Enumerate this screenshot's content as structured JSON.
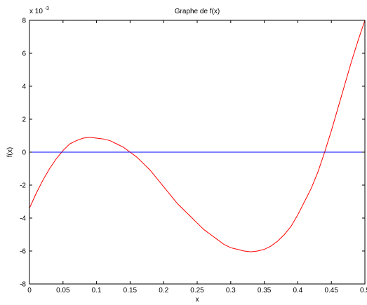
{
  "chart_data": {
    "type": "line",
    "title": "Graphe de f(x)",
    "xlabel": "x",
    "ylabel": "f(x)",
    "xlim": [
      0,
      0.5
    ],
    "ylim": [
      -0.008,
      0.008
    ],
    "y_exponent_label": "x 10",
    "y_exponent_power": "-3",
    "xticks": [
      0,
      0.05,
      0.1,
      0.15,
      0.2,
      0.25,
      0.3,
      0.35,
      0.4,
      0.45,
      0.5
    ],
    "xtick_labels": [
      "0",
      "0.05",
      "0.1",
      "0.15",
      "0.2",
      "0.25",
      "0.3",
      "0.35",
      "0.4",
      "0.45",
      "0.5"
    ],
    "yticks": [
      -0.008,
      -0.006,
      -0.004,
      -0.002,
      0,
      0.002,
      0.004,
      0.006,
      0.008
    ],
    "ytick_labels": [
      "-8",
      "-6",
      "-4",
      "-2",
      "0",
      "2",
      "4",
      "6",
      "8"
    ],
    "grid": false,
    "series": [
      {
        "color": "#ff0000",
        "x": [
          0,
          0.01,
          0.02,
          0.03,
          0.04,
          0.05,
          0.06,
          0.07,
          0.08,
          0.09,
          0.1,
          0.11,
          0.12,
          0.13,
          0.14,
          0.15,
          0.16,
          0.17,
          0.18,
          0.19,
          0.2,
          0.21,
          0.22,
          0.23,
          0.24,
          0.25,
          0.26,
          0.27,
          0.28,
          0.29,
          0.3,
          0.31,
          0.32,
          0.33,
          0.34,
          0.35,
          0.36,
          0.37,
          0.38,
          0.39,
          0.4,
          0.41,
          0.42,
          0.43,
          0.44,
          0.45,
          0.46,
          0.47,
          0.48,
          0.49,
          0.5
        ],
        "y": [
          -0.0034,
          -0.0025,
          -0.0017,
          -0.001,
          -0.0004,
          0.0001,
          0.0005,
          0.0007,
          0.00085,
          0.0009,
          0.00085,
          0.0008,
          0.0007,
          0.0005,
          0.0003,
          0.0,
          -0.0003,
          -0.0007,
          -0.0011,
          -0.0016,
          -0.0021,
          -0.0026,
          -0.0031,
          -0.0035,
          -0.0039,
          -0.0043,
          -0.0047,
          -0.005,
          -0.0053,
          -0.0056,
          -0.0058,
          -0.0059,
          -0.006,
          -0.00605,
          -0.006,
          -0.0059,
          -0.0057,
          -0.0054,
          -0.005,
          -0.0045,
          -0.0038,
          -0.003,
          -0.0022,
          -0.0012,
          0.0,
          0.0013,
          0.0027,
          0.0041,
          0.0055,
          0.0068,
          0.008
        ]
      },
      {
        "color": "#0000ff",
        "x": [
          0,
          0.5
        ],
        "y": [
          0,
          0
        ]
      }
    ]
  }
}
